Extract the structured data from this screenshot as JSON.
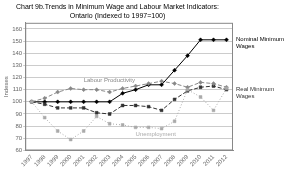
{
  "chart_data": {
    "type": "line",
    "title": "Chart 9b.Trends in Minimum Wage and Labour Market Indicators:\nOntario (Indexed to 1997=100)",
    "y_label": "Indexes",
    "x": [
      1997,
      1998,
      1999,
      2000,
      2001,
      2002,
      2003,
      2004,
      2005,
      2006,
      2007,
      2008,
      2009,
      2010,
      2011,
      2012
    ],
    "series": [
      {
        "name": "Unemployment",
        "color": "#aaaaaa",
        "line_style": "dotted",
        "marker": "square",
        "values": [
          100,
          87,
          76,
          69,
          76,
          88,
          82,
          81,
          79,
          79,
          78,
          84,
          110,
          104,
          93,
          111
        ]
      },
      {
        "name": "Labour Productivity",
        "color": "#888888",
        "line_style": "dashed",
        "marker": "diamond",
        "values": [
          100,
          103,
          108,
          111,
          110,
          110,
          108,
          111,
          113,
          115,
          117,
          115,
          112,
          116,
          115,
          112
        ]
      },
      {
        "name": "Real Minimum\nWages",
        "color": "#333333",
        "line_style": "dashed",
        "marker": "square",
        "values": [
          100,
          98,
          95,
          95,
          95,
          91,
          90,
          97,
          97,
          96,
          93,
          102,
          109,
          112,
          113,
          110
        ]
      },
      {
        "name": "Nominal Minimum\nWages",
        "color": "#000000",
        "line_style": "solid",
        "marker": "diamond",
        "values": [
          100,
          100,
          100,
          100,
          100,
          100,
          100,
          107,
          110,
          114,
          114,
          126,
          138,
          151,
          151,
          151
        ]
      }
    ],
    "xlim": [
      1996.5,
      2012.5
    ],
    "xticks": [
      1997,
      1998,
      1999,
      2000,
      2001,
      2002,
      2003,
      2004,
      2005,
      2006,
      2007,
      2008,
      2009,
      2010,
      2011,
      2012
    ],
    "ylim": [
      60,
      165
    ],
    "yticks": [
      60,
      70,
      80,
      90,
      100,
      110,
      120,
      130,
      140,
      150,
      160
    ],
    "grid": "y"
  }
}
